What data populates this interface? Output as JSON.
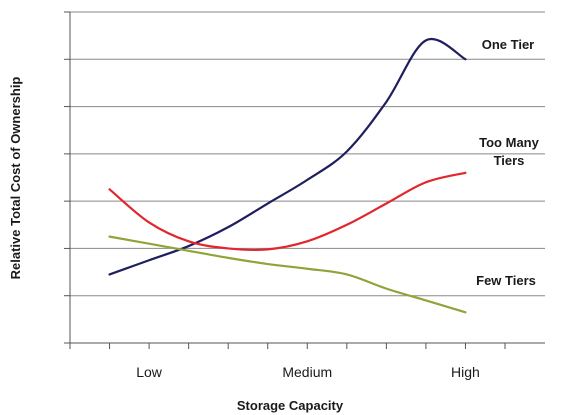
{
  "chart_data": {
    "type": "line",
    "title": "",
    "xlabel": "Storage Capacity",
    "ylabel": "Relative Total Cost of Ownership",
    "x_tick_labels": [
      {
        "label": "Low",
        "x": 1
      },
      {
        "label": "Medium",
        "x": 3
      },
      {
        "label": "High",
        "x": 5
      }
    ],
    "xlim": [
      0,
      5.5
    ],
    "ylim": [
      0,
      7
    ],
    "grid": "horizontal",
    "legend": "none",
    "colors": {
      "One Tier": "#1f1f5e",
      "Too Many Tiers": "#e1262e",
      "Few Tiers": "#8fa43a",
      "grid": "#888888",
      "axis": "#555555"
    },
    "series": [
      {
        "name": "One Tier",
        "x": [
          0.5,
          1.0,
          1.5,
          2.0,
          2.5,
          3.0,
          3.5,
          4.0,
          4.5,
          5.0
        ],
        "values": [
          1.45,
          1.75,
          2.05,
          2.45,
          2.95,
          3.45,
          4.05,
          5.1,
          6.4,
          6.0
        ]
      },
      {
        "name": "Too Many Tiers",
        "x": [
          0.5,
          1.0,
          1.5,
          2.0,
          2.5,
          3.0,
          3.5,
          4.0,
          4.5,
          5.0
        ],
        "values": [
          3.25,
          2.55,
          2.15,
          2.0,
          1.98,
          2.15,
          2.5,
          2.95,
          3.4,
          3.6
        ]
      },
      {
        "name": "Few Tiers",
        "x": [
          0.5,
          1.0,
          1.5,
          2.0,
          2.5,
          3.0,
          3.5,
          4.0,
          4.5,
          5.0
        ],
        "values": [
          2.25,
          2.1,
          1.95,
          1.8,
          1.67,
          1.57,
          1.45,
          1.15,
          0.9,
          0.65
        ]
      }
    ],
    "series_labels": [
      {
        "text": "One Tier",
        "series": "One Tier"
      },
      {
        "text": "Too Many",
        "series": "Too Many Tiers"
      },
      {
        "text": "Tiers",
        "series": "Too Many Tiers"
      },
      {
        "text": "Few Tiers",
        "series": "Few Tiers"
      }
    ]
  }
}
